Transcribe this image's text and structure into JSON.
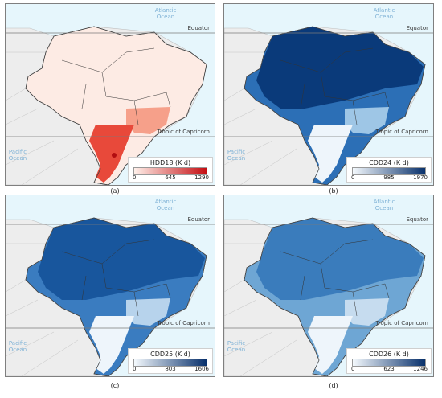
{
  "labels": {
    "atlantic": "Atlantic Ocean",
    "pacific": "Pacific Ocean",
    "equator": "Equator",
    "tropic": "Tropic of Capricorn"
  },
  "panels": [
    {
      "caption": "(a)",
      "legend_title": "HDD18  (K d)",
      "ticks": [
        "0",
        "645",
        "1290"
      ],
      "ramp": [
        "#fff0ea",
        "#c50e12"
      ],
      "fill": "#fdebe4",
      "accent_region": "south",
      "accent_colors": [
        "#e8493a",
        "#f6a08a",
        "#b20d10"
      ]
    },
    {
      "caption": "(b)",
      "legend_title": "CDD24  (K d)",
      "ticks": [
        "0",
        "985",
        "1970"
      ],
      "ramp": [
        "#f4f9fd",
        "#08306b"
      ],
      "fill": "#2c6fb6",
      "accent_region": "north",
      "accent_colors": [
        "#0a3a7a",
        "#9ec6e6",
        "#eef5fb"
      ]
    },
    {
      "caption": "(c)",
      "legend_title": "CDD25  (K d)",
      "ticks": [
        "0",
        "803",
        "1606"
      ],
      "ramp": [
        "#f4f9fd",
        "#08306b"
      ],
      "fill": "#3a7cc0",
      "accent_region": "mixed",
      "accent_colors": [
        "#0d4a91",
        "#b7d3ec",
        "#eef5fb"
      ]
    },
    {
      "caption": "(d)",
      "legend_title": "CDD26  (K d)",
      "ticks": [
        "0",
        "623",
        "1246"
      ],
      "ramp": [
        "#f4f9fd",
        "#08306b"
      ],
      "fill": "#6ea6d4",
      "accent_region": "mixed",
      "accent_colors": [
        "#2a6db4",
        "#c6dcef",
        "#eef5fb"
      ]
    }
  ]
}
